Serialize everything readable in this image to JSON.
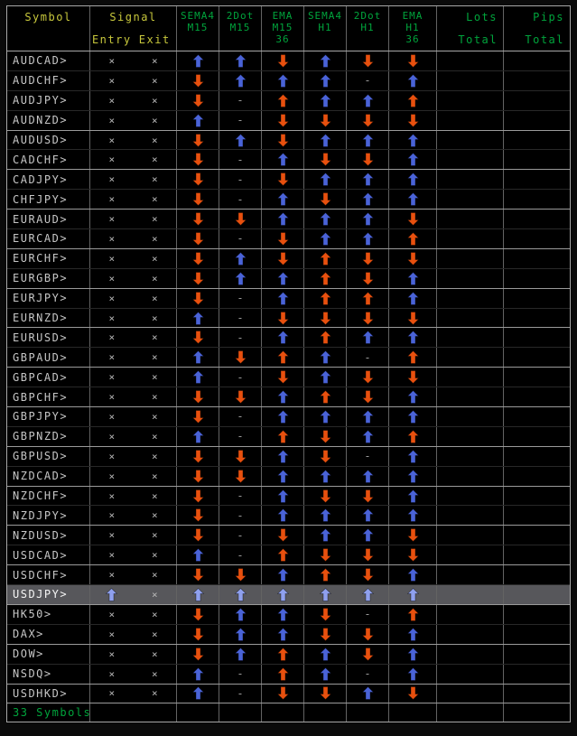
{
  "header": {
    "symbol": "Symbol",
    "signal": "Signal",
    "entry": "Entry",
    "exit": "Exit",
    "columns": [
      {
        "l1": "SEMA4",
        "l2": "M15",
        "l3": ""
      },
      {
        "l1": "2Dot",
        "l2": "M15",
        "l3": ""
      },
      {
        "l1": "EMA",
        "l2": "M15",
        "l3": "36"
      },
      {
        "l1": "SEMA4",
        "l2": "H1",
        "l3": ""
      },
      {
        "l1": "2Dot",
        "l2": "H1",
        "l3": ""
      },
      {
        "l1": "EMA",
        "l2": "H1",
        "l3": "36"
      }
    ],
    "lots": {
      "l1": "Lots",
      "l2": "Total"
    },
    "pips": {
      "l1": "Pips",
      "l2": "Total"
    }
  },
  "rows": [
    {
      "symbol": "AUDCAD>",
      "entry": "x",
      "exit": "x",
      "signals": [
        "up-blue",
        "up-blue",
        "down-orange",
        "up-blue",
        "down-orange",
        "down-orange"
      ],
      "lots": "",
      "pips": "",
      "highlight": false
    },
    {
      "symbol": "AUDCHF>",
      "entry": "x",
      "exit": "x",
      "signals": [
        "down-orange",
        "up-blue",
        "up-blue",
        "up-blue",
        "dash",
        "up-blue"
      ],
      "lots": "",
      "pips": "",
      "highlight": false
    },
    {
      "symbol": "AUDJPY>",
      "entry": "x",
      "exit": "x",
      "signals": [
        "down-orange",
        "dash",
        "up-orange",
        "up-blue",
        "up-blue",
        "up-orange"
      ],
      "lots": "",
      "pips": "",
      "highlight": false
    },
    {
      "symbol": "AUDNZD>",
      "entry": "x",
      "exit": "x",
      "signals": [
        "up-blue",
        "dash",
        "down-orange",
        "down-orange",
        "down-orange",
        "down-orange"
      ],
      "lots": "",
      "pips": "",
      "highlight": false
    },
    {
      "symbol": "AUDUSD>",
      "entry": "x",
      "exit": "x",
      "signals": [
        "down-orange",
        "up-blue",
        "down-orange",
        "up-blue",
        "up-blue",
        "up-blue"
      ],
      "lots": "",
      "pips": "",
      "highlight": false
    },
    {
      "symbol": "CADCHF>",
      "entry": "x",
      "exit": "x",
      "signals": [
        "down-orange",
        "dash",
        "up-blue",
        "down-orange",
        "down-orange",
        "up-blue"
      ],
      "lots": "",
      "pips": "",
      "highlight": false
    },
    {
      "symbol": "CADJPY>",
      "entry": "x",
      "exit": "x",
      "signals": [
        "down-orange",
        "dash",
        "down-orange",
        "up-blue",
        "up-blue",
        "up-blue"
      ],
      "lots": "",
      "pips": "",
      "highlight": false
    },
    {
      "symbol": "CHFJPY>",
      "entry": "x",
      "exit": "x",
      "signals": [
        "down-orange",
        "dash",
        "up-blue",
        "down-orange",
        "up-blue",
        "up-blue"
      ],
      "lots": "",
      "pips": "",
      "highlight": false
    },
    {
      "symbol": "EURAUD>",
      "entry": "x",
      "exit": "x",
      "signals": [
        "down-orange",
        "down-orange",
        "up-blue",
        "up-blue",
        "up-blue",
        "down-orange"
      ],
      "lots": "",
      "pips": "",
      "highlight": false
    },
    {
      "symbol": "EURCAD>",
      "entry": "x",
      "exit": "x",
      "signals": [
        "down-orange",
        "dash",
        "down-orange",
        "up-blue",
        "up-blue",
        "up-orange"
      ],
      "lots": "",
      "pips": "",
      "highlight": false
    },
    {
      "symbol": "EURCHF>",
      "entry": "x",
      "exit": "x",
      "signals": [
        "down-orange",
        "up-blue",
        "down-orange",
        "up-orange",
        "down-orange",
        "down-orange"
      ],
      "lots": "",
      "pips": "",
      "highlight": false
    },
    {
      "symbol": "EURGBP>",
      "entry": "x",
      "exit": "x",
      "signals": [
        "down-orange",
        "up-blue",
        "up-blue",
        "up-orange",
        "down-orange",
        "up-blue"
      ],
      "lots": "",
      "pips": "",
      "highlight": false
    },
    {
      "symbol": "EURJPY>",
      "entry": "x",
      "exit": "x",
      "signals": [
        "down-orange",
        "dash",
        "up-blue",
        "up-orange",
        "up-orange",
        "up-blue"
      ],
      "lots": "",
      "pips": "",
      "highlight": false
    },
    {
      "symbol": "EURNZD>",
      "entry": "x",
      "exit": "x",
      "signals": [
        "up-blue",
        "dash",
        "down-orange",
        "down-orange",
        "down-orange",
        "down-orange"
      ],
      "lots": "",
      "pips": "",
      "highlight": false
    },
    {
      "symbol": "EURUSD>",
      "entry": "x",
      "exit": "x",
      "signals": [
        "down-orange",
        "dash",
        "up-blue",
        "up-orange",
        "up-blue",
        "up-blue"
      ],
      "lots": "",
      "pips": "",
      "highlight": false
    },
    {
      "symbol": "GBPAUD>",
      "entry": "x",
      "exit": "x",
      "signals": [
        "up-blue",
        "down-orange",
        "up-orange",
        "up-blue",
        "dash",
        "up-orange"
      ],
      "lots": "",
      "pips": "",
      "highlight": false
    },
    {
      "symbol": "GBPCAD>",
      "entry": "x",
      "exit": "x",
      "signals": [
        "up-blue",
        "dash",
        "down-orange",
        "up-blue",
        "down-orange",
        "down-orange"
      ],
      "lots": "",
      "pips": "",
      "highlight": false
    },
    {
      "symbol": "GBPCHF>",
      "entry": "x",
      "exit": "x",
      "signals": [
        "down-orange",
        "down-orange",
        "up-blue",
        "up-orange",
        "down-orange",
        "up-blue"
      ],
      "lots": "",
      "pips": "",
      "highlight": false
    },
    {
      "symbol": "GBPJPY>",
      "entry": "x",
      "exit": "x",
      "signals": [
        "down-orange",
        "dash",
        "up-blue",
        "up-blue",
        "up-blue",
        "up-blue"
      ],
      "lots": "",
      "pips": "",
      "highlight": false
    },
    {
      "symbol": "GBPNZD>",
      "entry": "x",
      "exit": "x",
      "signals": [
        "up-blue",
        "dash",
        "up-orange",
        "down-orange",
        "up-blue",
        "up-orange"
      ],
      "lots": "",
      "pips": "",
      "highlight": false
    },
    {
      "symbol": "GBPUSD>",
      "entry": "x",
      "exit": "x",
      "signals": [
        "down-orange",
        "down-orange",
        "up-blue",
        "down-orange",
        "dash",
        "up-blue"
      ],
      "lots": "",
      "pips": "",
      "highlight": false
    },
    {
      "symbol": "NZDCAD>",
      "entry": "x",
      "exit": "x",
      "signals": [
        "down-orange",
        "down-orange",
        "up-blue",
        "up-blue",
        "up-blue",
        "up-blue"
      ],
      "lots": "",
      "pips": "",
      "highlight": false
    },
    {
      "symbol": "NZDCHF>",
      "entry": "x",
      "exit": "x",
      "signals": [
        "down-orange",
        "dash",
        "up-blue",
        "down-orange",
        "down-orange",
        "up-blue"
      ],
      "lots": "",
      "pips": "",
      "highlight": false
    },
    {
      "symbol": "NZDJPY>",
      "entry": "x",
      "exit": "x",
      "signals": [
        "down-orange",
        "dash",
        "up-blue",
        "up-blue",
        "up-blue",
        "up-blue"
      ],
      "lots": "",
      "pips": "",
      "highlight": false
    },
    {
      "symbol": "NZDUSD>",
      "entry": "x",
      "exit": "x",
      "signals": [
        "down-orange",
        "dash",
        "down-orange",
        "up-blue",
        "up-blue",
        "down-orange"
      ],
      "lots": "",
      "pips": "",
      "highlight": false
    },
    {
      "symbol": "USDCAD>",
      "entry": "x",
      "exit": "x",
      "signals": [
        "up-blue",
        "dash",
        "up-orange",
        "down-orange",
        "down-orange",
        "down-orange"
      ],
      "lots": "",
      "pips": "",
      "highlight": false
    },
    {
      "symbol": "USDCHF>",
      "entry": "x",
      "exit": "x",
      "signals": [
        "down-orange",
        "down-orange",
        "up-blue",
        "up-orange",
        "down-orange",
        "up-blue"
      ],
      "lots": "",
      "pips": "",
      "highlight": false
    },
    {
      "symbol": "USDJPY>",
      "entry": "up-blue",
      "exit": "x",
      "signals": [
        "up-blue",
        "up-blue",
        "up-blue",
        "up-blue",
        "up-blue",
        "up-blue"
      ],
      "lots": "",
      "pips": "",
      "highlight": true
    },
    {
      "symbol": "HK50>",
      "entry": "x",
      "exit": "x",
      "signals": [
        "down-orange",
        "up-blue",
        "up-blue",
        "down-orange",
        "dash",
        "up-orange"
      ],
      "lots": "",
      "pips": "",
      "highlight": false
    },
    {
      "symbol": "DAX>",
      "entry": "x",
      "exit": "x",
      "signals": [
        "down-orange",
        "up-blue",
        "up-blue",
        "down-orange",
        "down-orange",
        "up-blue"
      ],
      "lots": "",
      "pips": "",
      "highlight": false
    },
    {
      "symbol": "DOW>",
      "entry": "x",
      "exit": "x",
      "signals": [
        "down-orange",
        "up-blue",
        "up-orange",
        "up-blue",
        "down-orange",
        "up-blue"
      ],
      "lots": "",
      "pips": "",
      "highlight": false
    },
    {
      "symbol": "NSDQ>",
      "entry": "x",
      "exit": "x",
      "signals": [
        "up-blue",
        "dash",
        "up-orange",
        "up-blue",
        "dash",
        "up-blue"
      ],
      "lots": "",
      "pips": "",
      "highlight": false
    },
    {
      "symbol": "USDHKD>",
      "entry": "x",
      "exit": "x",
      "signals": [
        "up-blue",
        "dash",
        "down-orange",
        "down-orange",
        "up-blue",
        "down-orange"
      ],
      "lots": "",
      "pips": "",
      "highlight": false
    }
  ],
  "footer": {
    "summary": "33 Symbols"
  },
  "marks": {
    "x": "×",
    "dash": "-"
  },
  "colors": {
    "header_yellow": "#c8c83c",
    "header_green": "#00a43c",
    "arrow_blue": "#4a63d8",
    "arrow_blue_highlight": "#8fa0ee",
    "arrow_orange": "#e8500e",
    "row_text": "#c6c6c6",
    "highlight_bg": "#57575b",
    "grid_line": "#636363",
    "group_line": "#9a9a9a",
    "panel_border": "#a8a8a8",
    "table_bg": "#000000"
  }
}
